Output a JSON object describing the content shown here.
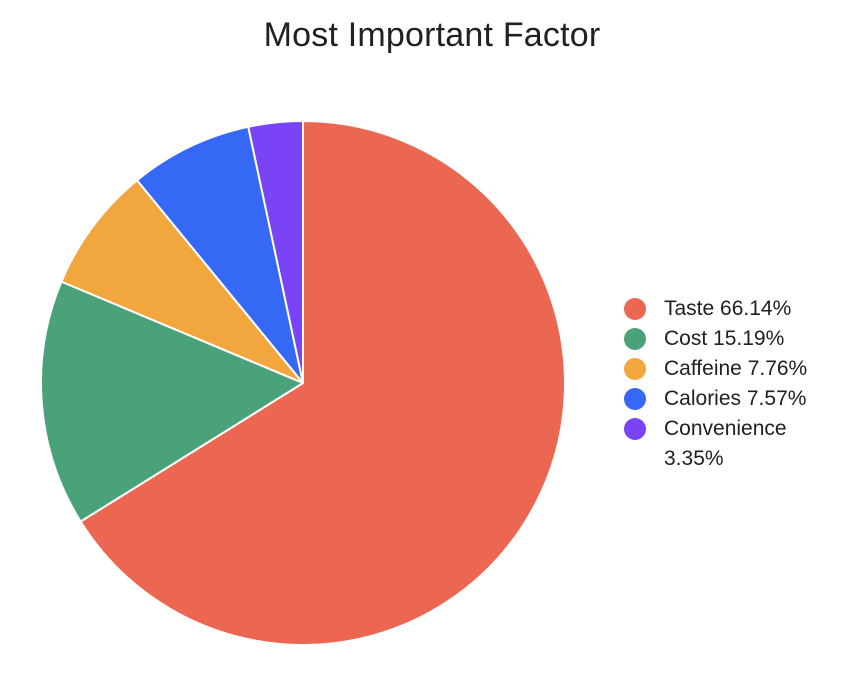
{
  "chart_data": {
    "type": "pie",
    "title": "Most Important Factor",
    "legend_position": "right",
    "slices": [
      {
        "label": "Taste",
        "value": 66.14,
        "value_label": "66.14%",
        "color": "#ec6752"
      },
      {
        "label": "Cost",
        "value": 15.19,
        "value_label": "15.19%",
        "color": "#4aa27a"
      },
      {
        "label": "Caffeine",
        "value": 7.76,
        "value_label": "7.76%",
        "color": "#f2a73e"
      },
      {
        "label": "Calories",
        "value": 7.57,
        "value_label": "7.57%",
        "color": "#3568f5"
      },
      {
        "label": "Convenience",
        "value": 3.35,
        "value_label": "3.35%",
        "color": "#7a44f6"
      }
    ]
  }
}
